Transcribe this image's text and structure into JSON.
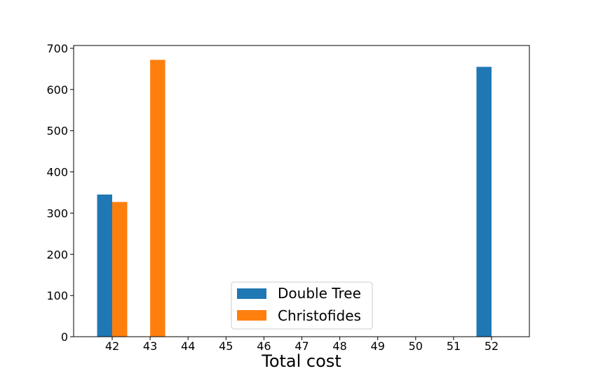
{
  "chart_data": {
    "type": "bar",
    "title": "",
    "xlabel": "Total cost",
    "ylabel": "",
    "categories": [
      "42",
      "43",
      "44",
      "45",
      "46",
      "47",
      "48",
      "49",
      "50",
      "51",
      "52"
    ],
    "series": [
      {
        "name": "Double Tree",
        "color": "#1f77b4",
        "values": [
          345,
          0,
          0,
          0,
          0,
          0,
          0,
          0,
          0,
          0,
          655
        ]
      },
      {
        "name": "Christofides",
        "color": "#ff7f0e",
        "values": [
          327,
          672,
          0,
          0,
          0,
          0,
          0,
          0,
          0,
          0,
          0
        ]
      }
    ],
    "ylim": [
      0,
      700
    ],
    "yticks": [
      "0",
      "100",
      "200",
      "300",
      "400",
      "500",
      "600",
      "700"
    ],
    "grid": false,
    "legend_position": "bottom-center"
  }
}
